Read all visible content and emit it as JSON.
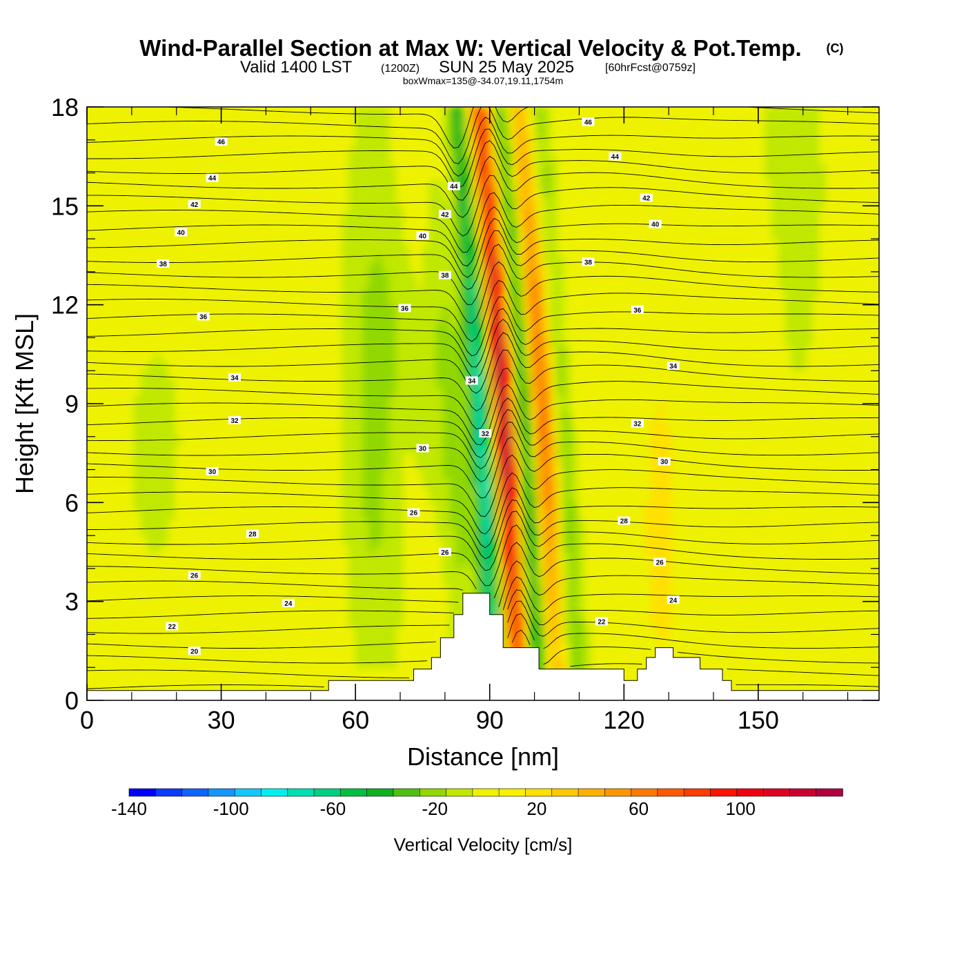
{
  "title": {
    "main": "Wind-Parallel Section at Max W: Vertical Velocity & Pot.Temp.",
    "copyright": "(C)",
    "valid_a": "Valid 1400 LST",
    "valid_b": "(1200Z)",
    "valid_c": "SUN 25 May 2025",
    "valid_d": "[60hrFcst@0759z]",
    "box": "boxWmax=135@-34.07,19.11,1754m"
  },
  "chart_data": {
    "type": "heatmap",
    "xlabel": "Distance [nm]",
    "ylabel": "Height [Kft MSL]",
    "xlim": [
      0,
      177
    ],
    "ylim": [
      0,
      18
    ],
    "xticks": [
      0,
      30,
      60,
      90,
      120,
      150
    ],
    "yticks": [
      0,
      3,
      6,
      9,
      12,
      15,
      18
    ],
    "colorbar": {
      "label": "Vertical Velocity [cm/s]",
      "range": [
        -140,
        140
      ],
      "step": 10,
      "tick_labels": [
        -140,
        -100,
        -60,
        -20,
        20,
        60,
        100
      ],
      "colors": [
        "#0000ff",
        "#0a3cff",
        "#0f64ff",
        "#1496ff",
        "#14c8ff",
        "#00f0f0",
        "#00e0b0",
        "#00d080",
        "#00c040",
        "#10b020",
        "#50c010",
        "#90d800",
        "#c0e800",
        "#eef200",
        "#f8f000",
        "#ffe000",
        "#ffc800",
        "#ffb000",
        "#ff9600",
        "#ff7800",
        "#ff5a00",
        "#ff3c00",
        "#ff1400",
        "#f00010",
        "#e00020",
        "#cc0030",
        "#b00040"
      ]
    },
    "theta_contour_labels": [
      {
        "value": 20,
        "x": 24,
        "y": 1.5
      },
      {
        "value": 22,
        "x": 19,
        "y": 2.25
      },
      {
        "value": 24,
        "x": 45,
        "y": 2.95
      },
      {
        "value": 26,
        "x": 24,
        "y": 3.8
      },
      {
        "value": 28,
        "x": 37,
        "y": 5.05
      },
      {
        "value": 30,
        "x": 28,
        "y": 6.95
      },
      {
        "value": 32,
        "x": 33,
        "y": 8.5
      },
      {
        "value": 34,
        "x": 33,
        "y": 9.8
      },
      {
        "value": 36,
        "x": 26,
        "y": 11.65
      },
      {
        "value": 38,
        "x": 17,
        "y": 13.25
      },
      {
        "value": 40,
        "x": 21,
        "y": 14.2
      },
      {
        "value": 42,
        "x": 24,
        "y": 15.05
      },
      {
        "value": 44,
        "x": 28,
        "y": 15.85
      },
      {
        "value": 46,
        "x": 30,
        "y": 16.95
      },
      {
        "value": 26,
        "x": 73,
        "y": 5.7
      },
      {
        "value": 26,
        "x": 80,
        "y": 4.5
      },
      {
        "value": 30,
        "x": 75,
        "y": 7.65
      },
      {
        "value": 32,
        "x": 89,
        "y": 8.1
      },
      {
        "value": 34,
        "x": 86,
        "y": 9.7
      },
      {
        "value": 36,
        "x": 71,
        "y": 11.9
      },
      {
        "value": 38,
        "x": 80,
        "y": 12.9
      },
      {
        "value": 40,
        "x": 75,
        "y": 14.1
      },
      {
        "value": 42,
        "x": 80,
        "y": 14.75
      },
      {
        "value": 44,
        "x": 82,
        "y": 15.6
      },
      {
        "value": 22,
        "x": 115,
        "y": 2.4
      },
      {
        "value": 24,
        "x": 131,
        "y": 3.05
      },
      {
        "value": 26,
        "x": 128,
        "y": 4.2
      },
      {
        "value": 28,
        "x": 120,
        "y": 5.45
      },
      {
        "value": 30,
        "x": 129,
        "y": 7.25
      },
      {
        "value": 32,
        "x": 123,
        "y": 8.4
      },
      {
        "value": 34,
        "x": 131,
        "y": 10.15
      },
      {
        "value": 36,
        "x": 123,
        "y": 11.85
      },
      {
        "value": 38,
        "x": 112,
        "y": 13.3
      },
      {
        "value": 40,
        "x": 127,
        "y": 14.45
      },
      {
        "value": 42,
        "x": 125,
        "y": 15.25
      },
      {
        "value": 44,
        "x": 118,
        "y": 16.5
      },
      {
        "value": 46,
        "x": 112,
        "y": 17.55
      }
    ],
    "terrain_kft": [
      [
        0,
        0.3
      ],
      [
        54,
        0.3
      ],
      [
        54,
        0.6
      ],
      [
        73,
        0.6
      ],
      [
        73,
        0.95
      ],
      [
        77,
        0.95
      ],
      [
        77,
        1.3
      ],
      [
        79,
        1.3
      ],
      [
        79,
        1.9
      ],
      [
        82,
        1.9
      ],
      [
        82,
        2.6
      ],
      [
        84,
        2.6
      ],
      [
        84,
        3.25
      ],
      [
        90,
        3.25
      ],
      [
        90,
        2.6
      ],
      [
        93,
        2.6
      ],
      [
        93,
        1.6
      ],
      [
        101,
        1.6
      ],
      [
        101,
        0.95
      ],
      [
        120,
        0.95
      ],
      [
        120,
        0.6
      ],
      [
        123,
        0.6
      ],
      [
        123,
        0.95
      ],
      [
        125,
        0.95
      ],
      [
        125,
        1.3
      ],
      [
        127,
        1.3
      ],
      [
        127,
        1.6
      ],
      [
        131,
        1.6
      ],
      [
        131,
        1.3
      ],
      [
        137,
        1.3
      ],
      [
        137,
        0.95
      ],
      [
        142,
        0.95
      ],
      [
        142,
        0.6
      ],
      [
        144,
        0.6
      ],
      [
        144,
        0.3
      ],
      [
        177,
        0.3
      ]
    ]
  }
}
